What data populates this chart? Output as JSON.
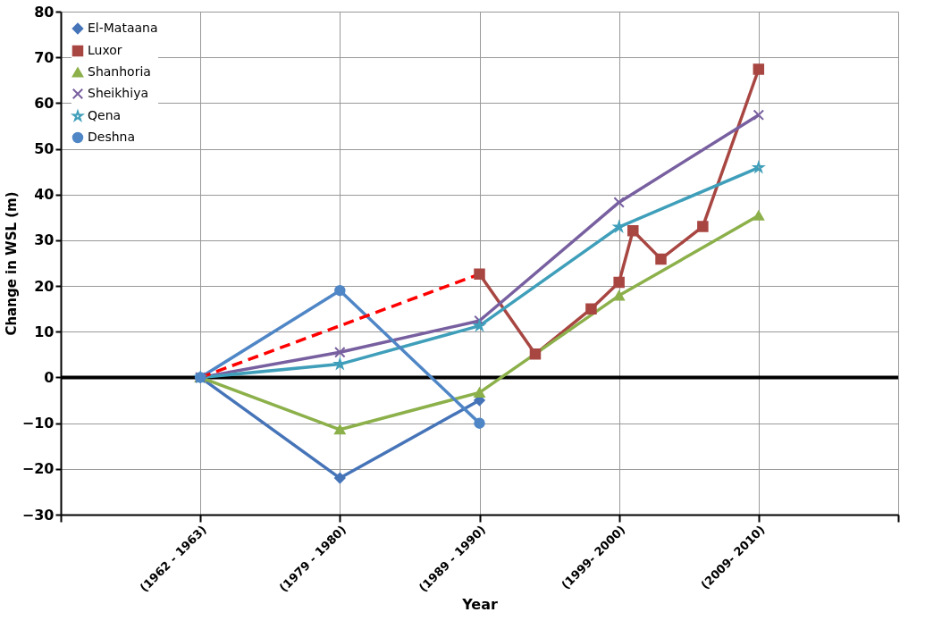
{
  "chart_data": {
    "type": "line",
    "xlabel": "Year",
    "ylabel": "Change in WSL  (m)",
    "categories": [
      null,
      null,
      null,
      null,
      null,
      null,
      null,
      null,
      null,
      null,
      "(1962 - 1963)",
      null,
      null,
      null,
      null,
      null,
      null,
      null,
      null,
      null,
      "(1979 - 1980)",
      null,
      null,
      null,
      null,
      null,
      null,
      null,
      null,
      null,
      "(1989 - 1990)",
      null,
      null,
      null,
      null,
      null,
      null,
      null,
      null,
      null,
      "(1999- 2000)",
      null,
      null,
      null,
      null,
      null,
      null,
      null,
      null,
      null,
      "(2009- 2010)",
      null,
      null,
      null,
      null,
      null,
      null,
      null,
      null,
      null,
      null
    ],
    "ylim": [
      -30,
      80
    ],
    "yticks": [
      -30,
      -20,
      -10,
      0,
      10,
      20,
      30,
      40,
      50,
      60,
      70,
      80
    ],
    "grid": true,
    "legend": "top left",
    "line_style": "solid",
    "ref_lines": [
      {
        "axis": "y",
        "value": 0,
        "color": "#000000"
      }
    ],
    "series": [
      {
        "name": "El-Mataana",
        "color": "#4674b8",
        "marker": "diamond",
        "values": [
          null,
          null,
          null,
          null,
          null,
          null,
          null,
          null,
          null,
          null,
          0,
          null,
          null,
          null,
          null,
          null,
          null,
          null,
          null,
          null,
          -22,
          null,
          null,
          null,
          null,
          null,
          null,
          null,
          null,
          null,
          -5,
          null,
          null,
          null,
          null,
          null,
          null,
          null,
          null,
          null,
          null,
          null,
          null,
          null,
          null,
          null,
          null,
          null,
          null,
          null,
          null,
          null,
          null,
          null,
          null,
          null,
          null,
          null,
          null,
          null,
          null
        ]
      },
      {
        "name": "Luxor",
        "color": "#a84642",
        "marker": "square",
        "values": [
          null,
          null,
          null,
          null,
          null,
          null,
          null,
          null,
          null,
          null,
          null,
          null,
          null,
          null,
          null,
          null,
          null,
          null,
          null,
          null,
          null,
          null,
          null,
          null,
          null,
          null,
          null,
          null,
          null,
          null,
          22.6,
          null,
          null,
          null,
          5.1,
          null,
          null,
          null,
          15,
          null,
          20.8,
          32.1,
          null,
          25.9,
          null,
          null,
          33,
          null,
          null,
          null,
          67.4,
          null,
          null,
          null,
          null,
          null,
          null,
          null,
          null,
          null,
          null
        ]
      },
      {
        "name": "Shanhoria",
        "color": "#8cb04a",
        "marker": "triangle",
        "values": [
          null,
          null,
          null,
          null,
          null,
          null,
          null,
          null,
          null,
          null,
          0,
          null,
          null,
          null,
          null,
          null,
          null,
          null,
          null,
          null,
          -11.4,
          null,
          null,
          null,
          null,
          null,
          null,
          null,
          null,
          null,
          -3.3,
          null,
          null,
          null,
          null,
          null,
          null,
          null,
          null,
          null,
          17.9,
          null,
          null,
          null,
          null,
          null,
          null,
          null,
          null,
          null,
          35.4,
          null,
          null,
          null,
          null,
          null,
          null,
          null,
          null,
          null,
          null
        ]
      },
      {
        "name": "Sheikhiya",
        "color": "#7860a0",
        "marker": "cross",
        "values": [
          null,
          null,
          null,
          null,
          null,
          null,
          null,
          null,
          null,
          null,
          0,
          null,
          null,
          null,
          null,
          null,
          null,
          null,
          null,
          null,
          5.5,
          null,
          null,
          null,
          null,
          null,
          null,
          null,
          null,
          null,
          12.4,
          null,
          null,
          null,
          null,
          null,
          null,
          null,
          null,
          null,
          38.3,
          null,
          null,
          null,
          null,
          null,
          null,
          null,
          null,
          null,
          57.4,
          null,
          null,
          null,
          null,
          null,
          null,
          null,
          null,
          null,
          null
        ]
      },
      {
        "name": "Qena",
        "color": "#3f9fba",
        "marker": "star",
        "values": [
          null,
          null,
          null,
          null,
          null,
          null,
          null,
          null,
          null,
          null,
          0,
          null,
          null,
          null,
          null,
          null,
          null,
          null,
          null,
          null,
          2.9,
          null,
          null,
          null,
          null,
          null,
          null,
          null,
          null,
          null,
          11.3,
          null,
          null,
          null,
          null,
          null,
          null,
          null,
          null,
          null,
          32.9,
          null,
          null,
          null,
          null,
          null,
          null,
          null,
          null,
          null,
          45.9,
          null,
          null,
          null,
          null,
          null,
          null,
          null,
          null,
          null,
          null
        ]
      },
      {
        "name": "Deshna",
        "color": "#4f86c6",
        "marker": "circle",
        "values": [
          null,
          null,
          null,
          null,
          null,
          null,
          null,
          null,
          null,
          null,
          0,
          null,
          null,
          null,
          null,
          null,
          null,
          null,
          null,
          null,
          19,
          null,
          null,
          null,
          null,
          null,
          null,
          null,
          null,
          null,
          -10,
          null,
          null,
          null,
          null,
          null,
          null,
          null,
          null,
          null,
          null,
          null,
          null,
          null,
          null,
          null,
          null,
          null,
          null,
          null,
          null,
          null,
          null,
          null,
          null,
          null,
          null,
          null,
          null,
          null,
          null
        ]
      },
      {
        "color": "#ff0000",
        "marker": "none",
        "line_style": "dashed",
        "values": [
          null,
          null,
          null,
          null,
          null,
          null,
          null,
          null,
          null,
          null,
          0,
          null,
          null,
          null,
          null,
          null,
          null,
          null,
          null,
          null,
          null,
          null,
          null,
          null,
          null,
          null,
          null,
          null,
          null,
          null,
          22.6,
          null,
          null,
          null,
          null,
          null,
          null,
          null,
          null,
          null,
          null,
          null,
          null,
          null,
          null,
          null,
          null,
          null,
          null,
          null,
          null,
          null,
          null,
          null,
          null,
          null,
          null,
          null,
          null,
          null,
          null
        ]
      }
    ]
  }
}
